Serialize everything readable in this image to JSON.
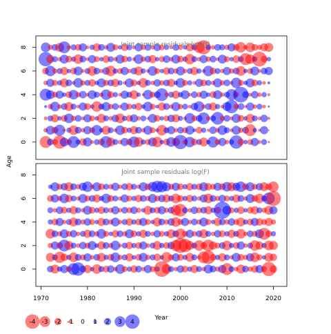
{
  "chart_data": {
    "type": "bubble",
    "ylabel": "Age",
    "xlabel": "Year",
    "xlim": [
      1970,
      2020
    ],
    "ylim": [
      -1,
      8.5
    ],
    "x_ticks": [
      1970,
      1980,
      1990,
      2000,
      2010,
      2020
    ],
    "y_ticks": [
      0,
      2,
      4,
      6,
      8
    ],
    "positive_color": "#0000ff",
    "negative_color": "#ff0000",
    "bubble_opacity": 0.5,
    "panels": [
      {
        "title": "Joint sample residuals log(N)",
        "ages": [
          0,
          1,
          2,
          3,
          4,
          5,
          6,
          7,
          8
        ],
        "years": [
          1971,
          2019
        ],
        "residuals": [
          [
            -1.6,
            0.9,
            -0.8,
            -1.8,
            1.2,
            -0.8,
            1.6,
            0.7,
            -1.0,
            1.2,
            -0.5,
            0.8,
            -0.9,
            1.6,
            -1.2,
            0.8,
            -0.6,
            1.1,
            -0.9,
            1.5,
            -1.3,
            0.7,
            -0.8,
            1.2,
            -1.4,
            0.6,
            -0.9,
            1.3,
            -1.1,
            1.9,
            -0.7,
            1.4,
            -0.9,
            0.8,
            -1.2,
            0.6,
            1.5,
            -0.8,
            1.1,
            -0.6,
            0.7,
            1.8,
            -0.9,
            0.6,
            -0.8,
            1.1,
            -0.5,
            0.8,
            -0.3
          ],
          [
            -0.6,
            1.2,
            -0.9,
            1.5,
            -0.4,
            0.7,
            -1.3,
            0.9,
            -0.6,
            1.1,
            -0.8,
            1.4,
            0.6,
            -1.2,
            0.8,
            -0.5,
            1.3,
            -0.9,
            0.7,
            -1.1,
            0.9,
            -0.6,
            1.2,
            -0.8,
            0.5,
            -1.4,
            0.8,
            1.1,
            -0.6,
            0.9,
            -0.8,
            1.2,
            0.5,
            -0.9,
            0.7,
            -0.4,
            1.0,
            -0.6,
            1.3,
            0.8,
            -0.5,
            1.2,
            -0.7,
            0.9,
            -1.6,
            0.6,
            -0.4,
            1.1,
            -0.2
          ],
          [
            -0.5,
            0.8,
            -1.1,
            0.6,
            -0.9,
            1.3,
            -0.7,
            0.9,
            -0.5,
            1.1,
            -0.8,
            0.6,
            -1.2,
            0.8,
            -0.6,
            1.0,
            -1.3,
            0.7,
            -0.9,
            1.1,
            -0.6,
            0.8,
            -0.4,
            1.2,
            -0.9,
            0.6,
            -0.8,
            1.0,
            -1.1,
            0.7,
            -0.5,
            1.4,
            -0.8,
            0.9,
            1.6,
            -0.6,
            0.8,
            1.7,
            -0.7,
            0.9,
            -0.5,
            1.2,
            -0.9,
            0.6,
            -1.2,
            0.8,
            -0.5,
            1.0,
            -0.4
          ],
          [
            0.4,
            -0.7,
            1.3,
            -0.6,
            0.9,
            -1.2,
            0.8,
            -0.5,
            1.1,
            -0.9,
            0.6,
            -1.4,
            0.8,
            1.2,
            -0.7,
            0.9,
            -0.5,
            1.1,
            -0.8,
            0.7,
            -1.0,
            0.6,
            1.3,
            -0.8,
            0.5,
            -1.1,
            0.9,
            -0.6,
            1.2,
            -0.7,
            0.8,
            -0.5,
            1.0,
            1.4,
            -0.6,
            0.9,
            -1.1,
            0.7,
            -0.5,
            1.2,
            1.8,
            -0.7,
            0.9,
            -0.4,
            1.1,
            -0.6,
            0.8,
            -0.5,
            0.3
          ],
          [
            1.6,
            1.2,
            -0.8,
            1.1,
            0.6,
            -0.9,
            1.3,
            -0.7,
            1.0,
            -0.5,
            1.2,
            0.8,
            -0.6,
            1.4,
            -0.9,
            0.7,
            -0.5,
            1.1,
            0.8,
            -1.2,
            0.6,
            -0.4,
            1.3,
            -0.8,
            0.9,
            1.7,
            -0.6,
            0.8,
            -1.1,
            0.7,
            1.2,
            -0.5,
            0.9,
            -0.7,
            1.1,
            0.6,
            -0.9,
            1.2,
            -0.6,
            0.8,
            1.5,
            -0.7,
            2.1,
            0.9,
            -0.5,
            1.0,
            -0.6,
            0.7,
            -0.4
          ],
          [
            -0.6,
            1.1,
            -0.8,
            0.7,
            -1.2,
            0.9,
            -0.5,
            1.3,
            -0.7,
            0.8,
            -1.0,
            0.6,
            1.2,
            -0.8,
            0.9,
            -1.1,
            0.7,
            -0.5,
            1.2,
            -0.9,
            0.6,
            -1.3,
            0.8,
            -0.6,
            1.0,
            -0.7,
            0.9,
            -1.1,
            0.6,
            1.3,
            -0.8,
            0.7,
            -0.5,
            1.1,
            -0.9,
            0.8,
            -0.6,
            1.2,
            -0.7,
            0.9,
            -0.5,
            1.4,
            -0.8,
            0.6,
            1.2,
            -0.9,
            0.7,
            -0.5,
            0.4
          ],
          [
            -0.9,
            1.4,
            -0.7,
            0.8,
            -1.1,
            0.6,
            -0.9,
            1.2,
            -0.5,
            0.8,
            -1.3,
            0.9,
            -0.6,
            1.0,
            -1.4,
            0.7,
            -0.8,
            1.1,
            -0.6,
            0.9,
            -1.2,
            0.7,
            -0.5,
            1.3,
            -0.8,
            0.6,
            -1.0,
            0.9,
            -0.7,
            1.2,
            -0.6,
            0.8,
            -1.1,
            0.7,
            -0.5,
            1.4,
            -0.9,
            0.8,
            -0.6,
            1.1,
            -0.7,
            0.9,
            -1.3,
            0.6,
            -0.8,
            1.2,
            -0.5,
            0.9,
            1.1
          ],
          [
            1.9,
            -1.1,
            0.8,
            -0.6,
            1.2,
            -0.9,
            0.7,
            -1.3,
            0.9,
            -0.5,
            1.1,
            -0.8,
            0.6,
            -1.0,
            0.8,
            -0.6,
            1.2,
            -0.9,
            0.7,
            -0.5,
            1.3,
            -0.7,
            0.9,
            -1.1,
            0.6,
            -0.8,
            1.0,
            -0.6,
            1.2,
            -0.9,
            0.7,
            -1.4,
            0.8,
            -0.6,
            1.1,
            -0.7,
            0.9,
            -0.5,
            1.2,
            -0.8,
            0.6,
            -1.0,
            0.8,
            -1.6,
            -1.3,
            0.7,
            -2.0,
            -0.9,
            0.6
          ],
          [
            1.3,
            -0.7,
            0.9,
            -1.2,
            1.6,
            -0.6,
            0.8,
            -0.9,
            1.1,
            -0.5,
            0.7,
            -1.1,
            0.9,
            -0.6,
            1.2,
            -0.8,
            0.6,
            -1.0,
            0.8,
            -0.5,
            1.1,
            -0.7,
            0.9,
            -0.6,
            1.0,
            -0.8,
            0.7,
            -0.5,
            0.9,
            -0.7,
            0.6,
            -1.1,
            0.8,
            -1.5,
            -1.9,
            0.7,
            -0.6,
            0.9,
            0.8,
            -0.7,
            1.1,
            -0.9,
            -1.4,
            -0.6,
            -1.3,
            -0.9,
            -0.7,
            -1.1,
            -1.2
          ]
        ]
      },
      {
        "title": "Joint sample residuals log(F)",
        "ages": [
          0,
          1,
          2,
          3,
          4,
          5,
          6,
          7
        ],
        "years": [
          1972,
          2020
        ],
        "residuals": [
          [
            0.9,
            -1.2,
            0.7,
            1.1,
            -0.8,
            1.6,
            1.8,
            0.9,
            -1.1,
            0.6,
            -1.3,
            0.8,
            -0.9,
            1.0,
            -0.6,
            1.3,
            -0.8,
            0.7,
            -1.0,
            0.9,
            -0.6,
            1.1,
            -0.8,
            0.7,
            -2.1,
            -1.3,
            0.8,
            -0.6,
            1.0,
            -0.9,
            0.7,
            -1.1,
            0.8,
            -0.6,
            1.2,
            0.9,
            -0.7,
            1.1,
            -1.6,
            0.8,
            -0.6,
            -1.2,
            0.9,
            -0.7,
            -1.0,
            1.1,
            -0.8,
            -1.9,
            -1.0
          ],
          [
            -1.2,
            0.8,
            -1.5,
            -1.0,
            0.7,
            -1.3,
            0.9,
            -0.8,
            1.1,
            -0.6,
            0.9,
            -1.2,
            0.7,
            -0.9,
            1.3,
            -0.7,
            0.8,
            -1.1,
            0.6,
            -0.9,
            1.2,
            -0.7,
            0.8,
            -1.0,
            0.6,
            -1.4,
            -0.8,
            1.1,
            -0.9,
            0.7,
            -1.2,
            0.8,
            -0.6,
            -1.6,
            -1.8,
            -0.9,
            0.7,
            -1.1,
            0.8,
            -0.6,
            1.2,
            -0.9,
            -0.7,
            1.1,
            -1.3,
            -0.8,
            0.6,
            -1.2,
            -1.0
          ],
          [
            -0.7,
            1.1,
            -0.9,
            1.6,
            -1.2,
            0.8,
            -0.6,
            1.0,
            -0.8,
            1.2,
            0.6,
            -1.1,
            0.9,
            -0.7,
            1.3,
            -0.5,
            0.8,
            -1.0,
            0.7,
            -0.9,
            1.1,
            -0.6,
            0.8,
            -1.2,
            0.7,
            -0.9,
            1.0,
            -1.5,
            -2.0,
            -1.8,
            -1.2,
            0.8,
            -1.4,
            -0.9,
            -1.6,
            -1.1,
            -0.8,
            0.9,
            -1.3,
            0.7,
            -0.9,
            1.1,
            -0.6,
            0.8,
            -1.4,
            -1.1,
            0.7,
            -1.3,
            -1.2
          ],
          [
            -1.3,
            0.9,
            -0.7,
            1.2,
            -0.8,
            1.0,
            -0.6,
            0.8,
            -1.1,
            0.9,
            -0.7,
            1.3,
            -0.8,
            0.6,
            -1.0,
            0.9,
            -0.7,
            1.2,
            -0.9,
            0.7,
            -1.1,
            0.8,
            -0.6,
            1.0,
            -0.8,
            0.7,
            -1.2,
            0.9,
            -1.4,
            -0.8,
            1.1,
            -0.7,
            0.9,
            -1.2,
            0.8,
            -0.6,
            1.0,
            -0.9,
            0.7,
            -1.1,
            0.8,
            -1.3,
            -0.6,
            0.9,
            -0.8,
            1.2,
            -1.6,
            -0.9,
            0.7
          ],
          [
            0.7,
            -0.9,
            1.1,
            -0.6,
            0.8,
            -1.2,
            0.9,
            -0.7,
            1.0,
            -0.8,
            0.6,
            -1.1,
            0.9,
            -0.7,
            1.2,
            -0.6,
            0.8,
            -1.0,
            0.7,
            -0.9,
            1.1,
            -0.8,
            0.6,
            -1.2,
            0.9,
            -0.7,
            1.0,
            -1.3,
            -0.8,
            1.1,
            -0.6,
            0.9,
            -0.7,
            1.2,
            -0.8,
            0.6,
            -1.1,
            0.9,
            -0.7,
            1.0,
            -0.8,
            -1.2,
            0.7,
            -0.9,
            1.1,
            -1.0,
            -0.8,
            -1.1,
            -0.7
          ],
          [
            0.8,
            -0.6,
            1.0,
            -0.9,
            0.7,
            -1.1,
            0.8,
            -0.6,
            1.2,
            -0.9,
            0.7,
            -1.0,
            0.8,
            -0.7,
            1.1,
            -0.6,
            0.9,
            -0.8,
            1.0,
            -0.7,
            0.6,
            -1.2,
            0.8,
            -0.9,
            1.1,
            -0.7,
            0.9,
            -1.4,
            -1.7,
            0.8,
            -0.6,
            1.0,
            -0.8,
            0.9,
            -1.1,
            0.7,
            -0.9,
            2.3,
            1.2,
            -0.8,
            0.7,
            -1.0,
            0.6,
            -0.9,
            -1.1,
            0.8,
            -0.7,
            -1.2,
            1.1
          ],
          [
            -0.9,
            1.1,
            -0.7,
            1.3,
            -1.0,
            0.8,
            -0.6,
            1.2,
            -0.8,
            0.9,
            -1.1,
            0.7,
            1.3,
            -0.9,
            0.8,
            -0.6,
            1.1,
            -0.8,
            0.7,
            -1.0,
            0.9,
            -0.7,
            1.2,
            -0.8,
            1.0,
            -1.1,
            0.8,
            -1.3,
            -0.9,
            0.7,
            -1.0,
            0.8,
            -0.6,
            1.1,
            -1.3,
            0.9,
            -0.7,
            1.0,
            -0.8,
            0.7,
            -1.1,
            0.9,
            -0.6,
            1.2,
            -0.9,
            -1.3,
            0.8,
            1.6,
            -2.0
          ],
          [
            0.6,
            1.2,
            -0.8,
            1.0,
            -1.2,
            0.9,
            -0.7,
            1.1,
            1.4,
            -0.6,
            1.2,
            -0.9,
            0.8,
            -0.7,
            1.1,
            -0.6,
            0.9,
            -1.0,
            0.8,
            -0.6,
            1.2,
            -0.9,
            1.3,
            1.6,
            1.5,
            1.2,
            -0.8,
            1.1,
            -0.9,
            0.7,
            -1.0,
            0.8,
            -0.9,
            1.2,
            -1.0,
            -0.8,
            1.1,
            -0.9,
            1.3,
            -1.2,
            1.1,
            1.4,
            -0.9,
            1.2,
            -0.8,
            1.0,
            -1.2,
            -0.9,
            -1.4
          ]
        ]
      }
    ],
    "legend": {
      "entries": [
        {
          "label": "-4",
          "value": -4
        },
        {
          "label": "-3",
          "value": -3
        },
        {
          "label": "-2",
          "value": -2
        },
        {
          "label": "-1",
          "value": -1
        },
        {
          "label": "0",
          "value": 0
        },
        {
          "label": "1",
          "value": 1
        },
        {
          "label": "2",
          "value": 2
        },
        {
          "label": "3",
          "value": 3
        },
        {
          "label": "4",
          "value": 4
        }
      ]
    }
  }
}
